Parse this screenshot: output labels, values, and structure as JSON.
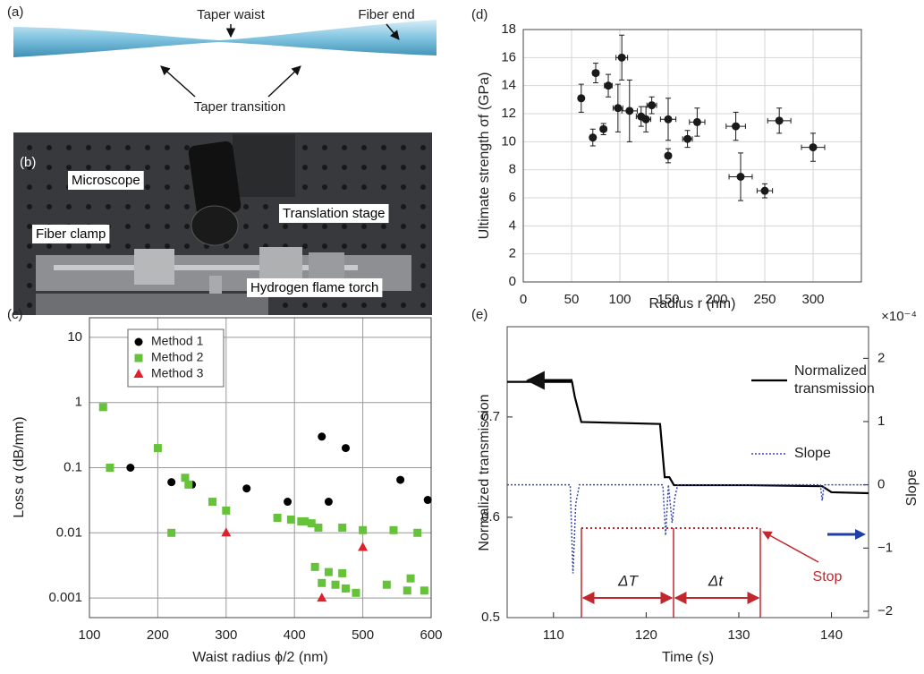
{
  "panel_a": {
    "label": "(a)",
    "annotations": [
      "Taper waist",
      "Fiber end",
      "Taper transition"
    ]
  },
  "panel_b": {
    "label": "(b)",
    "annotations": [
      "Microscope",
      "Translation stage",
      "Fiber clamp",
      "Hydrogen flame torch"
    ]
  },
  "chart_data": [
    {
      "type": "scatter",
      "label": "(c)",
      "xlabel": "Waist radius ϕ/2 (nm)",
      "ylabel": "Loss α (dB/mm)",
      "xlim": [
        100,
        600
      ],
      "xticks": [
        100,
        200,
        300,
        400,
        500,
        600
      ],
      "ylog": true,
      "ylim": [
        0.0005,
        20
      ],
      "yticks": [
        0.001,
        0.01,
        0.1,
        1,
        10
      ],
      "grid": true,
      "legend": "upper left",
      "series": [
        {
          "name": "Method 1",
          "color": "#000000",
          "marker": "circle",
          "x": [
            160,
            220,
            250,
            330,
            390,
            440,
            450,
            475,
            555,
            595
          ],
          "values": [
            0.1,
            0.06,
            0.055,
            0.048,
            0.03,
            0.3,
            0.03,
            0.2,
            0.065,
            0.032
          ]
        },
        {
          "name": "Method 2",
          "color": "#66c23a",
          "marker": "square",
          "x": [
            120,
            130,
            200,
            220,
            240,
            245,
            280,
            300,
            375,
            395,
            410,
            415,
            425,
            435,
            470,
            500,
            545,
            580,
            430,
            440,
            450,
            460,
            470,
            475,
            490,
            535,
            565,
            570,
            590
          ],
          "values": [
            0.85,
            0.1,
            0.2,
            0.01,
            0.07,
            0.055,
            0.03,
            0.022,
            0.017,
            0.016,
            0.015,
            0.015,
            0.014,
            0.012,
            0.012,
            0.011,
            0.011,
            0.01,
            0.003,
            0.0017,
            0.0025,
            0.0016,
            0.0024,
            0.0014,
            0.0012,
            0.0016,
            0.0013,
            0.002,
            0.0013
          ]
        },
        {
          "name": "Method 3",
          "color": "#e0202a",
          "marker": "triangle",
          "x": [
            300,
            440,
            500
          ],
          "values": [
            0.01,
            0.001,
            0.006
          ]
        }
      ]
    },
    {
      "type": "scatter",
      "label": "(d)",
      "xlabel": "Radius r (nm)",
      "ylabel": "Ultimate strength σf (GPa)",
      "xlim": [
        0,
        350
      ],
      "xticks": [
        0,
        50,
        100,
        150,
        200,
        250,
        300
      ],
      "ylim": [
        0,
        18
      ],
      "yticks": [
        0,
        2,
        4,
        6,
        8,
        10,
        12,
        14,
        16,
        18
      ],
      "grid": true,
      "series": [
        {
          "color": "#1a1a1a",
          "marker": "circle",
          "x": [
            60,
            72,
            75,
            83,
            88,
            98,
            102,
            110,
            122,
            127,
            133,
            150,
            150,
            170,
            180,
            220,
            225,
            250,
            265,
            300
          ],
          "values": [
            13.1,
            10.3,
            14.9,
            10.9,
            14.0,
            12.4,
            16.0,
            12.2,
            11.8,
            11.6,
            12.6,
            11.6,
            9.0,
            10.2,
            11.4,
            11.1,
            7.5,
            6.5,
            11.5,
            9.6
          ],
          "errors": [
            1.0,
            0.6,
            0.7,
            0.4,
            0.8,
            1.7,
            1.6,
            2.2,
            0.7,
            0.9,
            0.6,
            1.5,
            0.5,
            0.6,
            1.0,
            1.0,
            1.7,
            0.5,
            0.9,
            1.0
          ],
          "x_errors": [
            2,
            3,
            3,
            3,
            4,
            5,
            6,
            8,
            5,
            5,
            5,
            8,
            3,
            5,
            8,
            10,
            12,
            8,
            12,
            12
          ]
        }
      ]
    },
    {
      "type": "line",
      "label": "(e)",
      "xlabel": "Time (s)",
      "ylabel": "Normalized transmission",
      "y2label": "Slope",
      "y2scale": "×10⁻⁴",
      "xlim": [
        105,
        144
      ],
      "xticks": [
        110,
        120,
        130,
        140
      ],
      "ylim": [
        0.5,
        0.79
      ],
      "yticks": [
        0.5,
        0.6,
        0.7
      ],
      "y2lim": [
        -2.1,
        2.5
      ],
      "y2ticks": [
        {
          "value": -2,
          "label": "−2"
        },
        {
          "value": -1,
          "label": "−1"
        },
        0,
        1,
        2
      ],
      "grid": false,
      "annotations": [
        "ΔT",
        "Δt",
        "Stop"
      ],
      "series": [
        {
          "name": "Normalized transmission",
          "color": "#000000",
          "x": [
            105,
            112,
            112.3,
            113,
            121.5,
            122,
            122.5,
            123,
            131,
            139,
            140,
            144
          ],
          "values": [
            0.735,
            0.735,
            0.72,
            0.695,
            0.693,
            0.64,
            0.64,
            0.632,
            0.632,
            0.631,
            0.625,
            0.624
          ]
        },
        {
          "name": "Slope",
          "color": "#3a46b0",
          "dash": true,
          "axis": "y2",
          "x": [
            105,
            111.8,
            112.1,
            112.4,
            112.8,
            121.8,
            122.1,
            122.4,
            122.8,
            123.1,
            123.4,
            138.8,
            139,
            139.2,
            144
          ],
          "values": [
            0,
            0,
            -1.4,
            -0.3,
            0,
            0,
            -0.8,
            0,
            -0.6,
            -0.2,
            0,
            0,
            -0.25,
            0,
            0
          ]
        }
      ]
    }
  ]
}
